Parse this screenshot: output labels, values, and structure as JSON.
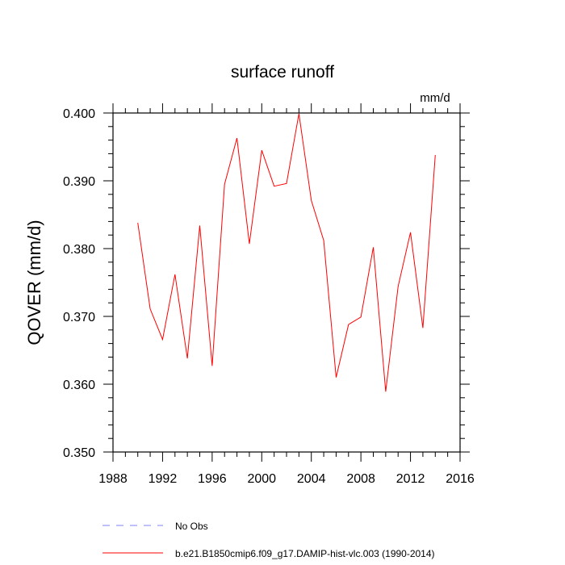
{
  "chart_data": {
    "type": "line",
    "title": "surface runoff",
    "units": "mm/d",
    "ylabel": "QOVER  (mm/d)",
    "xlim": [
      1988,
      2016
    ],
    "ylim": [
      0.35,
      0.4
    ],
    "x_ticks": [
      1988,
      1992,
      1996,
      2000,
      2004,
      2008,
      2012,
      2016
    ],
    "x_tick_labels": [
      "1988",
      "1992",
      "1996",
      "2000",
      "2004",
      "2008",
      "2012",
      "2016"
    ],
    "y_ticks": [
      0.35,
      0.36,
      0.37,
      0.38,
      0.39,
      0.4
    ],
    "y_tick_labels": [
      "0.350",
      "0.360",
      "0.370",
      "0.380",
      "0.390",
      "0.400"
    ],
    "grid": false,
    "legend_position": "bottom",
    "legend": [
      {
        "label": "No Obs",
        "color": "#8080ff",
        "dash": "dashed"
      },
      {
        "label": "b.e21.B1850cmip6.f09_g17.DAMIP-hist-vlc.003 (1990-2014)",
        "color": "#ff0000",
        "dash": "solid"
      }
    ],
    "series": [
      {
        "name": "b.e21.B1850cmip6.f09_g17.DAMIP-hist-vlc.003 (1990-2014)",
        "color": "#ff0000",
        "x": [
          1990,
          1991,
          1992,
          1993,
          1994,
          1995,
          1996,
          1997,
          1998,
          1999,
          2000,
          2001,
          2002,
          2003,
          2004,
          2005,
          2006,
          2007,
          2008,
          2009,
          2010,
          2011,
          2012,
          2013,
          2014
        ],
        "values": [
          0.3838,
          0.3711,
          0.3666,
          0.3762,
          0.3638,
          0.3834,
          0.3627,
          0.3895,
          0.3963,
          0.3807,
          0.3945,
          0.3892,
          0.3896,
          0.3999,
          0.3871,
          0.3812,
          0.361,
          0.3688,
          0.3699,
          0.3802,
          0.3589,
          0.3744,
          0.3824,
          0.3683,
          0.3938
        ]
      }
    ]
  }
}
